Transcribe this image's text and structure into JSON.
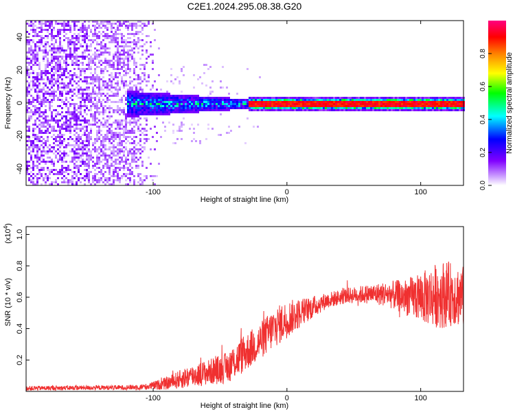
{
  "title": "C2E1.2024.295.08.38.G20",
  "colors": {
    "snr_line": "#f03030",
    "spectrogram_palette": [
      "#ffffff",
      "#8000ff",
      "#0000ff",
      "#00ffff",
      "#00ff00",
      "#ffff00",
      "#ff8000",
      "#ff0000",
      "#ff00ff"
    ]
  },
  "chart_data": [
    {
      "type": "heatmap",
      "xlabel": "Height of straight line (km)",
      "ylabel": "Frequency (Hz)",
      "xlim": [
        -195,
        132
      ],
      "ylim": [
        -50,
        50
      ],
      "xticks": [
        -100,
        0,
        100
      ],
      "yticks": [
        -40,
        -20,
        0,
        20,
        40
      ],
      "colorbar": {
        "label": "Normalized spectral amplitude",
        "range": [
          0,
          1
        ],
        "ticks": [
          0.0,
          0.2,
          0.4,
          0.6,
          0.8
        ]
      },
      "features": [
        {
          "name_hint": "broadband noise",
          "x_range": [
            -195,
            -95
          ],
          "freq_range": [
            -50,
            50
          ],
          "amplitude": 0.1
        },
        {
          "name_hint": "carrier onset",
          "x_range": [
            -120,
            -30
          ],
          "freq_halfwidth": [
            8,
            3
          ],
          "amplitude": 0.45
        },
        {
          "name_hint": "carrier line",
          "x_range": [
            -30,
            132
          ],
          "freq": 0,
          "amplitude": 0.95
        }
      ]
    },
    {
      "type": "line",
      "xlabel": "Height of straight line (km)",
      "ylabel": "SNR (10 * v/v)",
      "y_multiplier": "(x10",
      "y_multiplier_exp": "4",
      "y_multiplier_close": ")",
      "xlim": [
        -195,
        132
      ],
      "ylim": [
        0,
        1.05
      ],
      "xticks": [
        -100,
        0,
        100
      ],
      "yticks": [
        0.2,
        0.4,
        0.6,
        0.8,
        1.0
      ],
      "ytick_labels": [
        "0.2",
        "0.4",
        "0.6",
        "0.8",
        "1.0"
      ],
      "envelope": {
        "x": [
          -195,
          -120,
          -105,
          -90,
          -75,
          -60,
          -45,
          -35,
          -20,
          -10,
          0,
          15,
          30,
          45,
          60,
          75,
          90,
          105,
          115,
          125,
          132
        ],
        "y": [
          0.02,
          0.025,
          0.03,
          0.05,
          0.09,
          0.12,
          0.15,
          0.22,
          0.32,
          0.4,
          0.46,
          0.52,
          0.58,
          0.61,
          0.62,
          0.62,
          0.6,
          0.6,
          0.62,
          0.62,
          0.6
        ],
        "spread": [
          0.015,
          0.015,
          0.02,
          0.04,
          0.07,
          0.08,
          0.1,
          0.12,
          0.12,
          0.13,
          0.12,
          0.08,
          0.05,
          0.05,
          0.06,
          0.08,
          0.12,
          0.18,
          0.22,
          0.2,
          0.2
        ]
      }
    }
  ]
}
